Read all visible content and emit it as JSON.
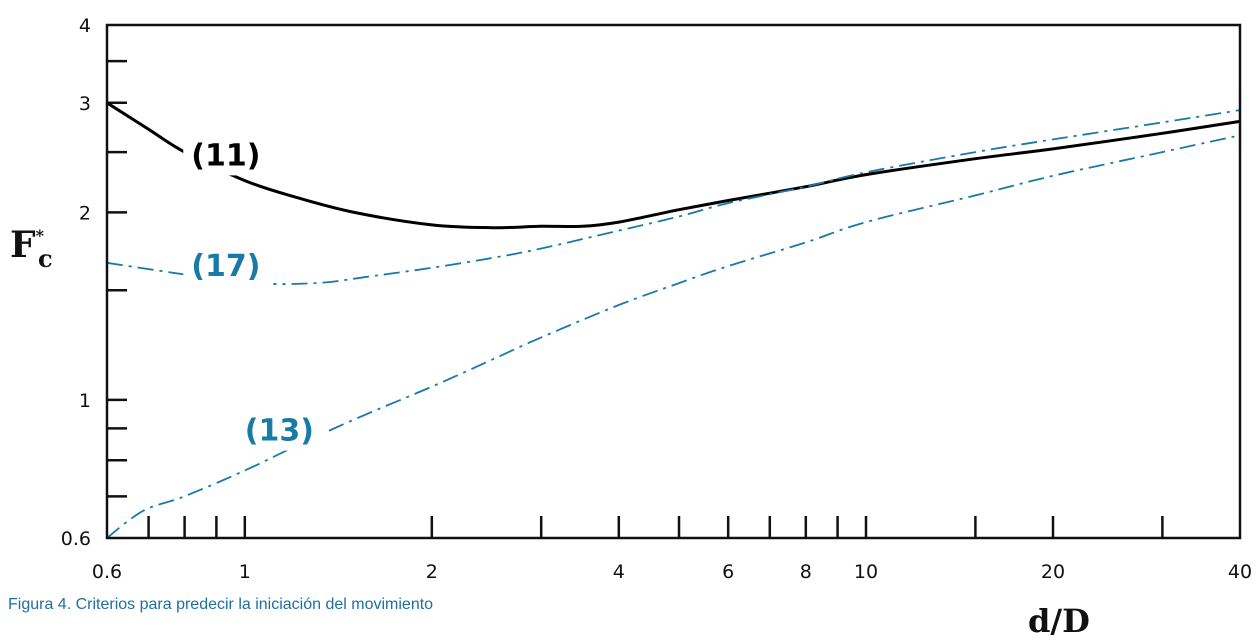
{
  "chart_data": {
    "type": "line",
    "x_scale": "log",
    "y_scale": "log",
    "xlim": [
      0.6,
      40
    ],
    "ylim": [
      0.6,
      4
    ],
    "xlabel": "d/D",
    "ylabel": "F",
    "ylabel_superscript": "*",
    "ylabel_subscript": "c",
    "x_ticks_labeled": [
      {
        "value": 0.6,
        "label": "0.6"
      },
      {
        "value": 1,
        "label": "1"
      },
      {
        "value": 2,
        "label": "2"
      },
      {
        "value": 4,
        "label": "4"
      },
      {
        "value": 6,
        "label": "6"
      },
      {
        "value": 8,
        "label": "8"
      },
      {
        "value": 10,
        "label": "10"
      },
      {
        "value": 20,
        "label": "20"
      },
      {
        "value": 40,
        "label": "40"
      }
    ],
    "x_ticks_minor": [
      0.7,
      0.8,
      0.9,
      3,
      5,
      7,
      9,
      15,
      30
    ],
    "y_ticks_labeled": [
      {
        "value": 0.6,
        "label": "0.6"
      },
      {
        "value": 1,
        "label": "1"
      },
      {
        "value": 2,
        "label": "2"
      },
      {
        "value": 3,
        "label": "3"
      },
      {
        "value": 4,
        "label": "4"
      }
    ],
    "y_ticks_minor": [
      0.7,
      0.8,
      0.9,
      1.5,
      2.5,
      3.5
    ],
    "grid": false,
    "legend": "none",
    "series": [
      {
        "name": "(11)",
        "color": "#000000",
        "style": "solid",
        "x": [
          0.6,
          0.7,
          0.8,
          1.0,
          1.2,
          1.5,
          2.0,
          2.5,
          3.0,
          3.5,
          4.0,
          5.0,
          6.0,
          8.0,
          10.0,
          15.0,
          20.0,
          30.0,
          40.0
        ],
        "y": [
          3.0,
          2.72,
          2.5,
          2.25,
          2.12,
          2.0,
          1.91,
          1.89,
          1.9,
          1.9,
          1.93,
          2.02,
          2.09,
          2.2,
          2.3,
          2.44,
          2.53,
          2.68,
          2.8
        ],
        "label_at": {
          "x": 0.82,
          "y": 2.38
        }
      },
      {
        "name": "(17)",
        "color": "#1a7aa6",
        "style": "dashdot",
        "x": [
          0.6,
          0.8,
          1.0,
          1.3,
          1.6,
          2.0,
          2.5,
          3.0,
          4.0,
          5.0,
          6.0,
          8.0,
          10.0,
          15.0,
          20.0,
          30.0,
          40.0
        ],
        "y": [
          1.66,
          1.59,
          1.54,
          1.54,
          1.58,
          1.63,
          1.69,
          1.75,
          1.87,
          1.97,
          2.07,
          2.2,
          2.32,
          2.5,
          2.62,
          2.79,
          2.92
        ],
        "label_at": {
          "x": 0.82,
          "y": 1.58
        }
      },
      {
        "name": "(13)",
        "color": "#1a7aa6",
        "style": "dashdot",
        "x": [
          0.6,
          0.65,
          0.7,
          0.8,
          1.0,
          1.2,
          1.5,
          2.0,
          2.5,
          3.0,
          4.0,
          5.0,
          6.0,
          8.0,
          10.0,
          15.0,
          20.0,
          30.0,
          40.0
        ],
        "y": [
          0.6,
          0.64,
          0.67,
          0.7,
          0.77,
          0.84,
          0.93,
          1.05,
          1.16,
          1.26,
          1.42,
          1.54,
          1.64,
          1.79,
          1.93,
          2.13,
          2.29,
          2.5,
          2.66
        ],
        "label_at": {
          "x": 1.0,
          "y": 0.86
        }
      }
    ]
  },
  "caption": "Figura 4.  Criterios para predecir la iniciación del movimiento"
}
